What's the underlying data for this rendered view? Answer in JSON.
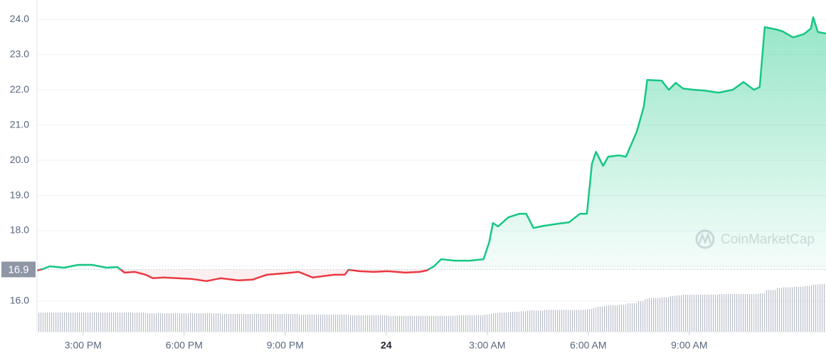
{
  "chart_data": {
    "type": "line",
    "x": [
      13.63,
      13.8,
      14.01,
      14.43,
      14.85,
      15.27,
      15.7,
      16.01,
      16.23,
      16.54,
      16.86,
      17.07,
      17.39,
      17.81,
      18.23,
      18.66,
      19.08,
      19.61,
      20.03,
      20.45,
      20.98,
      21.4,
      21.82,
      22.14,
      22.46,
      22.77,
      22.88,
      23.2,
      23.62,
      24.04,
      24.57,
      24.99,
      25.2,
      25.42,
      25.63,
      26.05,
      26.47,
      26.89,
      27.06,
      27.17,
      27.32,
      27.63,
      27.95,
      28.16,
      28.37,
      28.69,
      29.11,
      29.43,
      29.75,
      29.96,
      30.11,
      30.23,
      30.44,
      30.59,
      30.91,
      31.12,
      31.44,
      31.65,
      31.75,
      32.18,
      32.39,
      32.6,
      32.81,
      33.13,
      33.44,
      33.87,
      34.29,
      34.61,
      34.92,
      35.09,
      35.24,
      35.56,
      35.77,
      36.08,
      36.4,
      36.61,
      36.68,
      36.82,
      37.06
    ],
    "series": [
      {
        "name": "Price",
        "color": "#16c784",
        "color_down": "#ea3943",
        "values": [
          16.87,
          16.91,
          16.99,
          16.95,
          17.03,
          17.03,
          16.95,
          16.97,
          16.81,
          16.83,
          16.75,
          16.65,
          16.67,
          16.65,
          16.63,
          16.57,
          16.65,
          16.59,
          16.61,
          16.75,
          16.79,
          16.83,
          16.67,
          16.71,
          16.75,
          16.75,
          16.89,
          16.85,
          16.83,
          16.85,
          16.81,
          16.83,
          16.87,
          16.99,
          17.19,
          17.15,
          17.15,
          17.19,
          17.68,
          18.22,
          18.12,
          18.38,
          18.48,
          18.48,
          18.08,
          18.14,
          18.2,
          18.24,
          18.48,
          18.48,
          19.9,
          20.24,
          19.84,
          20.1,
          20.14,
          20.1,
          20.81,
          21.52,
          22.28,
          22.26,
          22.0,
          22.2,
          22.04,
          22.0,
          21.98,
          21.92,
          22.0,
          22.22,
          22.0,
          22.08,
          23.78,
          23.72,
          23.66,
          23.49,
          23.58,
          23.74,
          24.06,
          23.64,
          23.6
        ]
      },
      {
        "name": "Volume",
        "color": "#a7acb9",
        "axis": "y2",
        "values": [
          2.9,
          2.9,
          2.9,
          2.9,
          2.9,
          2.9,
          2.9,
          2.9,
          2.9,
          2.9,
          2.8,
          2.8,
          2.8,
          2.8,
          2.8,
          2.8,
          2.7,
          2.7,
          2.7,
          2.7,
          2.7,
          2.6,
          2.6,
          2.6,
          2.6,
          2.6,
          2.5,
          2.5,
          2.5,
          2.4,
          2.4,
          2.4,
          2.4,
          2.4,
          2.4,
          2.5,
          2.5,
          2.6,
          2.7,
          2.8,
          2.9,
          3.0,
          3.1,
          3.2,
          3.2,
          3.3,
          3.3,
          3.3,
          3.3,
          3.4,
          3.6,
          3.8,
          3.9,
          4.0,
          4.1,
          4.3,
          4.6,
          4.9,
          5.1,
          5.2,
          5.4,
          5.5,
          5.6,
          5.6,
          5.6,
          5.7,
          5.7,
          5.7,
          5.7,
          5.8,
          6.3,
          6.6,
          6.7,
          6.8,
          6.9,
          7.0,
          7.1,
          7.2,
          7.3
        ]
      }
    ],
    "baseline": 16.9,
    "xlim": [
      13.63,
      37.06
    ],
    "ylim": [
      15.13,
      24.55
    ],
    "y2lim": [
      0,
      50
    ],
    "xticks": [
      {
        "value": 15,
        "label": "3:00 PM"
      },
      {
        "value": 18,
        "label": "6:00 PM"
      },
      {
        "value": 21,
        "label": "9:00 PM"
      },
      24,
      {
        "value": 27,
        "label": "3:00 AM"
      },
      {
        "value": 30,
        "label": "6:00 AM"
      },
      {
        "value": 33,
        "label": "9:00 AM"
      }
    ],
    "yticks": [
      {
        "value": 16,
        "label": "16.0"
      },
      {
        "value": 17,
        "label": "17.0"
      },
      {
        "value": 18,
        "label": "18.0"
      },
      {
        "value": 19,
        "label": "19.0"
      },
      {
        "value": 20,
        "label": "20.0"
      },
      {
        "value": 21,
        "label": "21.0"
      },
      {
        "value": 22,
        "label": "22.0"
      },
      {
        "value": 23,
        "label": "23.0"
      },
      {
        "value": 24,
        "label": "24.0"
      }
    ],
    "grid": true,
    "watermark": "CoinMarketCap"
  }
}
